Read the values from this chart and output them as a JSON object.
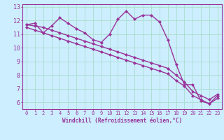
{
  "xlabel": "Windchill (Refroidissement éolien,°C)",
  "bg_color": "#cceeff",
  "line_color": "#993399",
  "grid_color": "#aaddcc",
  "x": [
    0,
    1,
    2,
    3,
    4,
    5,
    6,
    7,
    8,
    9,
    10,
    11,
    12,
    13,
    14,
    15,
    16,
    17,
    18,
    19,
    20,
    21,
    22,
    23
  ],
  "series1": [
    11.7,
    11.8,
    11.1,
    11.6,
    12.2,
    11.8,
    11.4,
    11.1,
    10.6,
    10.4,
    11.0,
    12.1,
    12.7,
    12.1,
    12.4,
    12.4,
    11.9,
    10.6,
    8.8,
    7.3,
    7.3,
    6.1,
    5.9,
    6.5
  ],
  "series2": [
    11.7,
    11.6,
    11.5,
    11.3,
    11.1,
    10.9,
    10.7,
    10.5,
    10.3,
    10.1,
    9.9,
    9.7,
    9.5,
    9.3,
    9.1,
    8.9,
    8.7,
    8.5,
    8.0,
    7.5,
    6.8,
    6.5,
    6.2,
    6.6
  ],
  "series3": [
    11.5,
    11.3,
    11.1,
    10.9,
    10.7,
    10.5,
    10.3,
    10.1,
    9.9,
    9.7,
    9.5,
    9.3,
    9.1,
    8.9,
    8.7,
    8.5,
    8.3,
    8.1,
    7.6,
    7.2,
    6.5,
    6.2,
    5.9,
    6.3
  ],
  "ylim": [
    5.5,
    13.2
  ],
  "yticks": [
    6,
    7,
    8,
    9,
    10,
    11,
    12,
    13
  ],
  "marker": "D",
  "markersize": 2.5,
  "linewidth": 1.0
}
